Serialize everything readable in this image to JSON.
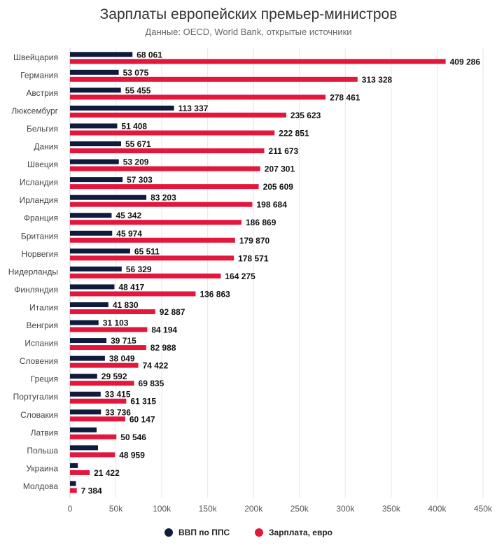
{
  "colors": {
    "gdp": "#0f1b3d",
    "salary": "#e3173c",
    "grid": "#e6e6e6",
    "axis": "#cccccc"
  },
  "chart_data": {
    "type": "bar",
    "orientation": "horizontal",
    "title": "Зарплаты европейских премьер-министров",
    "subtitle": "Данные: OECD, World Bank, открытые источники",
    "categories": [
      "Швейцария",
      "Германия",
      "Австрия",
      "Люксембург",
      "Бельгия",
      "Дания",
      "Швеция",
      "Исландия",
      "Ирландия",
      "Франция",
      "Британия",
      "Норвегия",
      "Нидерланды",
      "Финляндия",
      "Италия",
      "Венгрия",
      "Испания",
      "Словения",
      "Греция",
      "Португалия",
      "Словакия",
      "Латвия",
      "Польша",
      "Украина",
      "Молдова"
    ],
    "series": [
      {
        "name": "ВВП по ППС",
        "color": "#0f1b3d",
        "values": [
          68061,
          53075,
          55455,
          113337,
          51408,
          55671,
          53209,
          57303,
          83203,
          45342,
          45974,
          65511,
          56329,
          48417,
          41830,
          31103,
          39715,
          38049,
          29592,
          33415,
          33736,
          29000,
          30500,
          8500,
          6500
        ],
        "labels": [
          "68 061",
          "53 075",
          "55 455",
          "113 337",
          "51 408",
          "55 671",
          "53 209",
          "57 303",
          "83 203",
          "45 342",
          "45 974",
          "65 511",
          "56 329",
          "48 417",
          "41 830",
          "31 103",
          "39 715",
          "38 049",
          "29 592",
          "33 415",
          "33 736",
          "",
          "",
          "",
          ""
        ]
      },
      {
        "name": "Зарплата, евро",
        "color": "#e3173c",
        "values": [
          409286,
          313328,
          278461,
          235623,
          222851,
          211673,
          207301,
          205609,
          198684,
          186869,
          179870,
          178571,
          164275,
          136863,
          92887,
          84194,
          82988,
          74422,
          69835,
          61315,
          60147,
          50546,
          48959,
          21422,
          7384
        ],
        "labels": [
          "409 286",
          "313 328",
          "278 461",
          "235 623",
          "222 851",
          "211 673",
          "207 301",
          "205 609",
          "198 684",
          "186 869",
          "179 870",
          "178 571",
          "164 275",
          "136 863",
          "92 887",
          "84 194",
          "82 988",
          "74 422",
          "69 835",
          "61 315",
          "60 147",
          "50 546",
          "48 959",
          "21 422",
          "7 384"
        ]
      }
    ],
    "xlim": [
      0,
      450000
    ],
    "xticks": [
      0,
      50000,
      100000,
      150000,
      200000,
      250000,
      300000,
      350000,
      400000,
      450000
    ],
    "xtick_labels": [
      "0",
      "50k",
      "100k",
      "150k",
      "200k",
      "250k",
      "300k",
      "350k",
      "400k",
      "450k"
    ],
    "legend_position": "bottom-center",
    "grid": true
  }
}
